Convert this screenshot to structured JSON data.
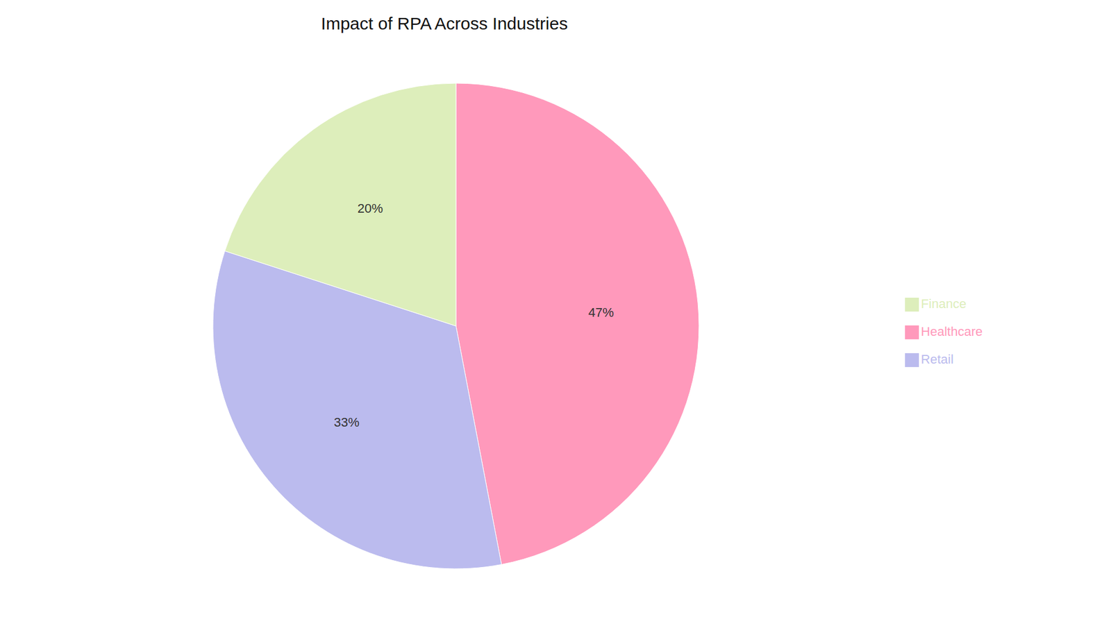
{
  "chart_data": {
    "type": "pie",
    "title": "Impact of RPA Across Industries",
    "categories": [
      "Healthcare",
      "Retail",
      "Finance"
    ],
    "values": [
      47,
      33,
      20
    ],
    "value_labels": [
      "47%",
      "33%",
      "20%"
    ],
    "colors": [
      "#FF99BB",
      "#BBBBEE",
      "#DDEEBB"
    ],
    "data_labels": true,
    "legend": "right"
  }
}
